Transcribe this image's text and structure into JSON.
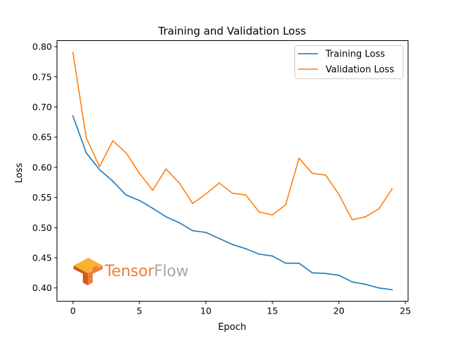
{
  "chart_data": {
    "type": "line",
    "title": "Training and Validation Loss",
    "xlabel": "Epoch",
    "ylabel": "Loss",
    "xlim": [
      -1.2,
      25.2
    ],
    "ylim": [
      0.378,
      0.81
    ],
    "xticks": [
      0,
      5,
      10,
      15,
      20,
      25
    ],
    "xtick_labels": [
      "0",
      "5",
      "10",
      "15",
      "20",
      "25"
    ],
    "yticks": [
      0.4,
      0.45,
      0.5,
      0.55,
      0.6,
      0.65,
      0.7,
      0.75,
      0.8
    ],
    "ytick_labels": [
      "0.40",
      "0.45",
      "0.50",
      "0.55",
      "0.60",
      "0.65",
      "0.70",
      "0.75",
      "0.80"
    ],
    "grid": false,
    "legend_position": "top-right",
    "x": [
      0,
      1,
      2,
      3,
      4,
      5,
      6,
      7,
      8,
      9,
      10,
      11,
      12,
      13,
      14,
      15,
      16,
      17,
      18,
      19,
      20,
      21,
      22,
      23,
      24
    ],
    "series": [
      {
        "name": "Training Loss",
        "color": "#1f77b4",
        "values": [
          0.685,
          0.624,
          0.596,
          0.577,
          0.554,
          0.545,
          0.532,
          0.518,
          0.508,
          0.495,
          0.492,
          0.482,
          0.472,
          0.465,
          0.456,
          0.453,
          0.441,
          0.441,
          0.425,
          0.424,
          0.421,
          0.41,
          0.406,
          0.4,
          0.397
        ]
      },
      {
        "name": "Validation Loss",
        "color": "#ff7f0e",
        "values": [
          0.79,
          0.649,
          0.601,
          0.644,
          0.624,
          0.59,
          0.562,
          0.597,
          0.574,
          0.54,
          0.556,
          0.574,
          0.557,
          0.554,
          0.526,
          0.521,
          0.538,
          0.615,
          0.59,
          0.587,
          0.555,
          0.513,
          0.518,
          0.531,
          0.564
        ]
      }
    ]
  },
  "logo": {
    "name": "tensorflow-icon",
    "word_part1": "Tensor",
    "word_part2": "Flow",
    "colors": {
      "orange": "#ee7d3b",
      "dark_orange": "#d1591f",
      "yellow": "#f8b233",
      "gray": "#a9a9a9"
    }
  }
}
